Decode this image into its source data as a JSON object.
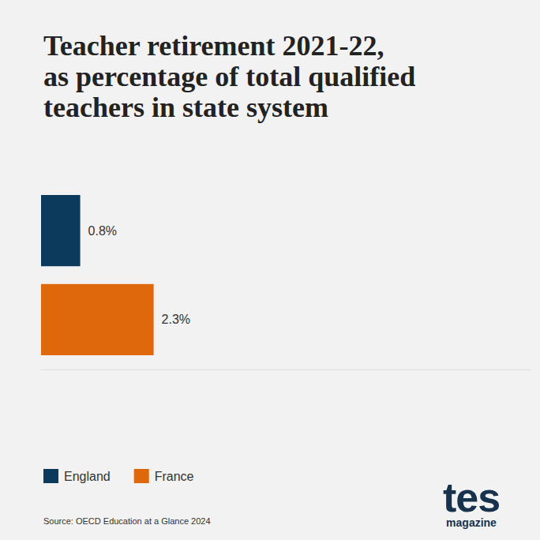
{
  "chart_data": {
    "type": "bar",
    "orientation": "horizontal",
    "title": [
      "Teacher retirement 2021-22,",
      "as percentage of total qualified",
      "teachers in state system"
    ],
    "categories": [
      "England",
      "France"
    ],
    "values": [
      0.8,
      2.3
    ],
    "value_labels": [
      "0.8%",
      "2.3%"
    ],
    "colors": [
      "#0b3a5c",
      "#de680b"
    ],
    "xlim": [
      0,
      10
    ],
    "xticks": [],
    "tick_labels": false,
    "grid": false,
    "data_labels": true,
    "legend": "bottom-left",
    "source": "Source: OECD Education at a Glance 2024",
    "logo": [
      "tes",
      "magazine"
    ]
  }
}
